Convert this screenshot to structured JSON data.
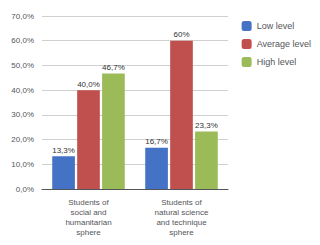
{
  "chart_data": {
    "type": "bar",
    "categories": [
      "Students of\nsocial and\nhumanitarian\nsphere",
      "Students of\nnatural science\nand technique\nsphere"
    ],
    "series": [
      {
        "name": "Low level",
        "color": "#4472C4",
        "values": [
          13.3,
          16.7
        ],
        "value_labels": [
          "13,3%",
          "16,7%"
        ]
      },
      {
        "name": "Average level",
        "color": "#C0504D",
        "values": [
          40.0,
          60.0
        ],
        "value_labels": [
          "40,0%",
          "60%"
        ]
      },
      {
        "name": "High level",
        "color": "#9BBB59",
        "values": [
          46.7,
          23.3
        ],
        "value_labels": [
          "46,7%",
          "23,3%"
        ]
      }
    ],
    "ylim": [
      0,
      70
    ],
    "yticks": [
      {
        "value": 0,
        "label": "0,0%"
      },
      {
        "value": 10,
        "label": "10,0%"
      },
      {
        "value": 20,
        "label": "20,0%"
      },
      {
        "value": 30,
        "label": "30,0%"
      },
      {
        "value": 40,
        "label": "40,0%"
      },
      {
        "value": 50,
        "label": "50,0%"
      },
      {
        "value": 60,
        "label": "60,0%"
      },
      {
        "value": 70,
        "label": "70,0%"
      }
    ],
    "grid": true,
    "legend": "right",
    "data_labels": true
  }
}
